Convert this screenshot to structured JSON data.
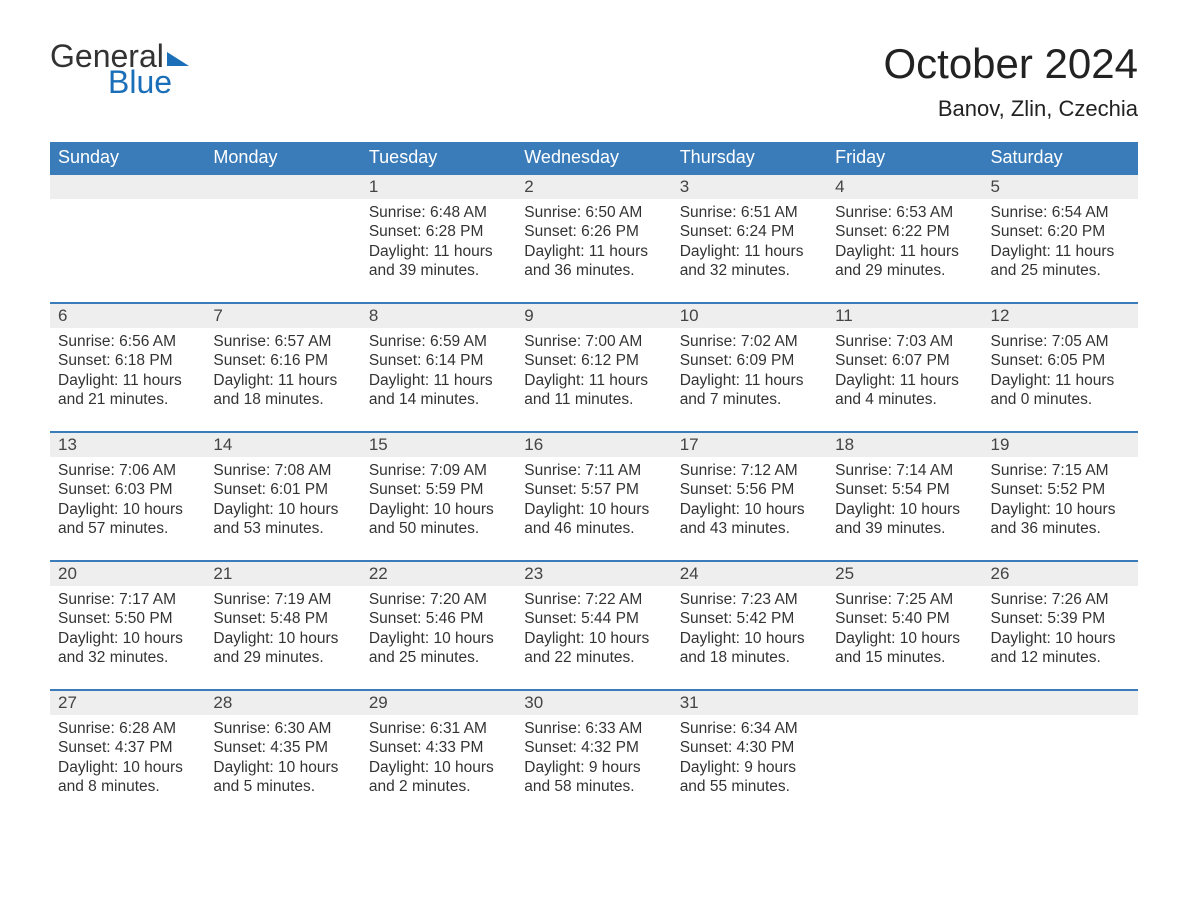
{
  "brand": {
    "word1": "General",
    "word2": "Blue",
    "accent": "#1a6fb8"
  },
  "title": "October 2024",
  "location": "Banov, Zlin, Czechia",
  "colors": {
    "header_bg": "#3a7cb9",
    "header_text": "#ffffff",
    "daybar_bg": "#eeeeee",
    "daybar_border": "#3a7cb9",
    "body_text": "#333333",
    "background": "#ffffff"
  },
  "weekdays": [
    "Sunday",
    "Monday",
    "Tuesday",
    "Wednesday",
    "Thursday",
    "Friday",
    "Saturday"
  ],
  "weeks": [
    [
      null,
      null,
      {
        "d": "1",
        "sr": "6:48 AM",
        "ss": "6:28 PM",
        "dl": "11 hours and 39 minutes."
      },
      {
        "d": "2",
        "sr": "6:50 AM",
        "ss": "6:26 PM",
        "dl": "11 hours and 36 minutes."
      },
      {
        "d": "3",
        "sr": "6:51 AM",
        "ss": "6:24 PM",
        "dl": "11 hours and 32 minutes."
      },
      {
        "d": "4",
        "sr": "6:53 AM",
        "ss": "6:22 PM",
        "dl": "11 hours and 29 minutes."
      },
      {
        "d": "5",
        "sr": "6:54 AM",
        "ss": "6:20 PM",
        "dl": "11 hours and 25 minutes."
      }
    ],
    [
      {
        "d": "6",
        "sr": "6:56 AM",
        "ss": "6:18 PM",
        "dl": "11 hours and 21 minutes."
      },
      {
        "d": "7",
        "sr": "6:57 AM",
        "ss": "6:16 PM",
        "dl": "11 hours and 18 minutes."
      },
      {
        "d": "8",
        "sr": "6:59 AM",
        "ss": "6:14 PM",
        "dl": "11 hours and 14 minutes."
      },
      {
        "d": "9",
        "sr": "7:00 AM",
        "ss": "6:12 PM",
        "dl": "11 hours and 11 minutes."
      },
      {
        "d": "10",
        "sr": "7:02 AM",
        "ss": "6:09 PM",
        "dl": "11 hours and 7 minutes."
      },
      {
        "d": "11",
        "sr": "7:03 AM",
        "ss": "6:07 PM",
        "dl": "11 hours and 4 minutes."
      },
      {
        "d": "12",
        "sr": "7:05 AM",
        "ss": "6:05 PM",
        "dl": "11 hours and 0 minutes."
      }
    ],
    [
      {
        "d": "13",
        "sr": "7:06 AM",
        "ss": "6:03 PM",
        "dl": "10 hours and 57 minutes."
      },
      {
        "d": "14",
        "sr": "7:08 AM",
        "ss": "6:01 PM",
        "dl": "10 hours and 53 minutes."
      },
      {
        "d": "15",
        "sr": "7:09 AM",
        "ss": "5:59 PM",
        "dl": "10 hours and 50 minutes."
      },
      {
        "d": "16",
        "sr": "7:11 AM",
        "ss": "5:57 PM",
        "dl": "10 hours and 46 minutes."
      },
      {
        "d": "17",
        "sr": "7:12 AM",
        "ss": "5:56 PM",
        "dl": "10 hours and 43 minutes."
      },
      {
        "d": "18",
        "sr": "7:14 AM",
        "ss": "5:54 PM",
        "dl": "10 hours and 39 minutes."
      },
      {
        "d": "19",
        "sr": "7:15 AM",
        "ss": "5:52 PM",
        "dl": "10 hours and 36 minutes."
      }
    ],
    [
      {
        "d": "20",
        "sr": "7:17 AM",
        "ss": "5:50 PM",
        "dl": "10 hours and 32 minutes."
      },
      {
        "d": "21",
        "sr": "7:19 AM",
        "ss": "5:48 PM",
        "dl": "10 hours and 29 minutes."
      },
      {
        "d": "22",
        "sr": "7:20 AM",
        "ss": "5:46 PM",
        "dl": "10 hours and 25 minutes."
      },
      {
        "d": "23",
        "sr": "7:22 AM",
        "ss": "5:44 PM",
        "dl": "10 hours and 22 minutes."
      },
      {
        "d": "24",
        "sr": "7:23 AM",
        "ss": "5:42 PM",
        "dl": "10 hours and 18 minutes."
      },
      {
        "d": "25",
        "sr": "7:25 AM",
        "ss": "5:40 PM",
        "dl": "10 hours and 15 minutes."
      },
      {
        "d": "26",
        "sr": "7:26 AM",
        "ss": "5:39 PM",
        "dl": "10 hours and 12 minutes."
      }
    ],
    [
      {
        "d": "27",
        "sr": "6:28 AM",
        "ss": "4:37 PM",
        "dl": "10 hours and 8 minutes."
      },
      {
        "d": "28",
        "sr": "6:30 AM",
        "ss": "4:35 PM",
        "dl": "10 hours and 5 minutes."
      },
      {
        "d": "29",
        "sr": "6:31 AM",
        "ss": "4:33 PM",
        "dl": "10 hours and 2 minutes."
      },
      {
        "d": "30",
        "sr": "6:33 AM",
        "ss": "4:32 PM",
        "dl": "9 hours and 58 minutes."
      },
      {
        "d": "31",
        "sr": "6:34 AM",
        "ss": "4:30 PM",
        "dl": "9 hours and 55 minutes."
      },
      null,
      null
    ]
  ],
  "labels": {
    "sunrise": "Sunrise: ",
    "sunset": "Sunset: ",
    "daylight": "Daylight: "
  }
}
